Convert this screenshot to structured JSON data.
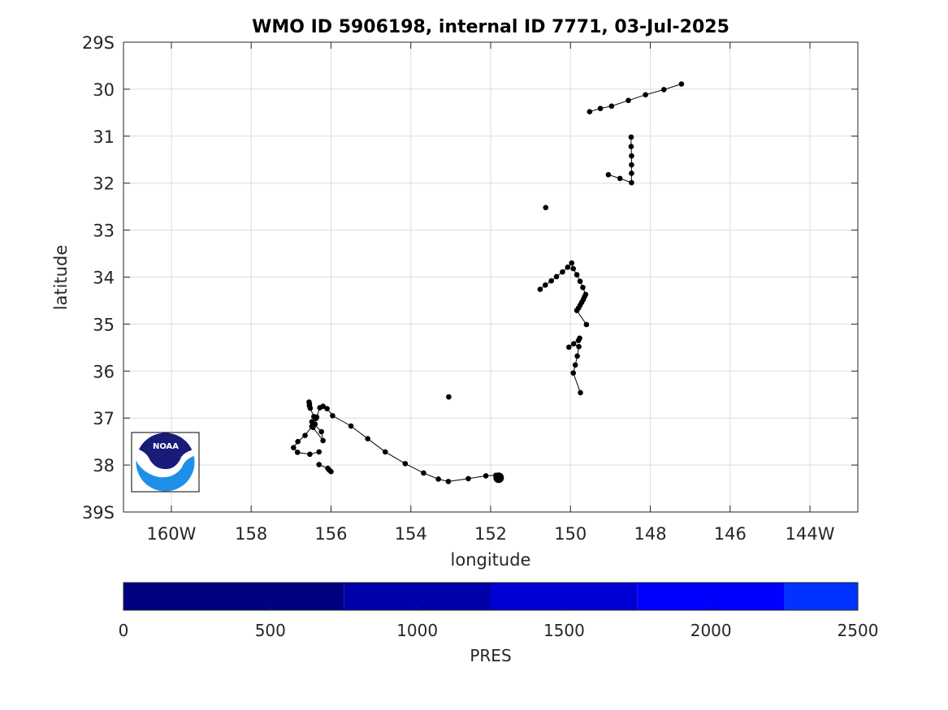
{
  "chart_data": {
    "type": "scatter",
    "title": "WMO ID 5906198, internal ID 7771, 03-Jul-2025",
    "xlabel": "longitude",
    "ylabel": "latitude",
    "xlim": [
      -161.2,
      -142.8
    ],
    "ylim": [
      29,
      39
    ],
    "x_ticks": [
      -160,
      -158,
      -156,
      -154,
      -152,
      -150,
      -148,
      -146,
      -144
    ],
    "x_tick_labels": [
      "160W",
      "158",
      "156",
      "154",
      "152",
      "150",
      "148",
      "146",
      "144W"
    ],
    "y_ticks": [
      29,
      30,
      31,
      32,
      33,
      34,
      35,
      36,
      37,
      38,
      39
    ],
    "y_tick_labels": [
      "29S",
      "30",
      "31",
      "32",
      "33",
      "34",
      "35",
      "36",
      "37",
      "38",
      "39S"
    ],
    "y_reversed": true,
    "grid": true,
    "marker_color": "#000000",
    "line_color": "#000000",
    "segments": [
      {
        "points": [
          [
            -147.22,
            29.89
          ],
          [
            -147.66,
            30.01
          ],
          [
            -148.12,
            30.12
          ],
          [
            -148.55,
            30.24
          ],
          [
            -148.97,
            30.36
          ],
          [
            -149.25,
            30.41
          ],
          [
            -149.52,
            30.48
          ]
        ]
      },
      {
        "points": [
          [
            -148.48,
            31.02
          ],
          [
            -148.48,
            31.22
          ],
          [
            -148.47,
            31.42
          ],
          [
            -148.47,
            31.61
          ],
          [
            -148.47,
            31.79
          ],
          [
            -148.47,
            31.99
          ],
          [
            -148.76,
            31.9
          ],
          [
            -149.05,
            31.82
          ]
        ]
      },
      {
        "points": [
          [
            -150.62,
            32.52
          ]
        ]
      },
      {
        "points": [
          [
            -150.76,
            34.26
          ],
          [
            -150.63,
            34.17
          ],
          [
            -150.48,
            34.08
          ],
          [
            -150.35,
            33.99
          ],
          [
            -150.2,
            33.89
          ],
          [
            -150.07,
            33.79
          ],
          [
            -149.97,
            33.7
          ],
          [
            -149.93,
            33.82
          ],
          [
            -149.84,
            33.95
          ],
          [
            -149.76,
            34.09
          ],
          [
            -149.69,
            34.22
          ],
          [
            -149.62,
            34.37
          ],
          [
            -149.65,
            34.42
          ],
          [
            -149.68,
            34.48
          ],
          [
            -149.72,
            34.54
          ],
          [
            -149.76,
            34.6
          ],
          [
            -149.8,
            34.66
          ],
          [
            -149.84,
            34.71
          ],
          [
            -149.6,
            35.01
          ]
        ]
      },
      {
        "points": [
          [
            -149.75,
            36.46
          ],
          [
            -149.93,
            36.04
          ],
          [
            -149.88,
            35.87
          ],
          [
            -149.83,
            35.68
          ],
          [
            -149.79,
            35.48
          ],
          [
            -149.92,
            35.42
          ],
          [
            -150.04,
            35.49
          ],
          [
            -149.77,
            35.3
          ],
          [
            -149.8,
            35.35
          ]
        ]
      },
      {
        "points": [
          [
            -153.05,
            36.55
          ]
        ]
      },
      {
        "points": [
          [
            -156.55,
            36.66
          ],
          [
            -156.54,
            36.7
          ],
          [
            -156.54,
            36.74
          ],
          [
            -156.52,
            36.79
          ],
          [
            -156.43,
            36.97
          ],
          [
            -156.38,
            37.01
          ],
          [
            -156.4,
            37.13
          ],
          [
            -156.45,
            37.2
          ],
          [
            -156.2,
            37.48
          ],
          [
            -156.24,
            37.29
          ],
          [
            -156.48,
            37.08
          ],
          [
            -156.36,
            36.98
          ],
          [
            -156.28,
            36.78
          ],
          [
            -156.2,
            36.75
          ],
          [
            -156.1,
            36.8
          ],
          [
            -155.96,
            36.95
          ],
          [
            -155.5,
            37.17
          ],
          [
            -155.08,
            37.44
          ],
          [
            -154.64,
            37.72
          ],
          [
            -154.14,
            37.97
          ],
          [
            -153.68,
            38.17
          ],
          [
            -153.31,
            38.3
          ],
          [
            -153.06,
            38.35
          ],
          [
            -152.56,
            38.29
          ],
          [
            -152.12,
            38.23
          ],
          [
            -151.87,
            38.22
          ],
          [
            -151.8,
            38.27
          ]
        ]
      },
      {
        "points": [
          [
            -156.3,
            37.72
          ],
          [
            -156.53,
            37.77
          ],
          [
            -156.84,
            37.73
          ],
          [
            -156.94,
            37.63
          ],
          [
            -156.83,
            37.5
          ],
          [
            -156.65,
            37.37
          ],
          [
            -156.48,
            37.18
          ],
          [
            -156.45,
            37.12
          ]
        ]
      },
      {
        "points": [
          [
            -156.3,
            37.99
          ],
          [
            -156.08,
            38.07
          ],
          [
            -156.04,
            38.11
          ],
          [
            -156.0,
            38.14
          ]
        ]
      }
    ],
    "last_position": [
      -151.8,
      38.27
    ],
    "colorbar": {
      "label": "PRES",
      "min": 0,
      "max": 2500,
      "ticks": [
        0,
        500,
        1000,
        1500,
        2000,
        2500
      ],
      "tick_labels": [
        "0",
        "500",
        "1000",
        "1500",
        "2000",
        "2500"
      ],
      "bands": [
        {
          "from": 0,
          "to": 750,
          "color": "#000080"
        },
        {
          "from": 750,
          "to": 1250,
          "color": "#0000AA"
        },
        {
          "from": 1250,
          "to": 1750,
          "color": "#0000D4"
        },
        {
          "from": 1750,
          "to": 2250,
          "color": "#0000FF"
        },
        {
          "from": 2250,
          "to": 2500,
          "color": "#0033FF"
        }
      ]
    }
  },
  "logo": {
    "text": "NOAA",
    "colors": {
      "navy": "#1A1B78",
      "sky": "#1E90E8",
      "white": "#FFFFFF"
    }
  }
}
